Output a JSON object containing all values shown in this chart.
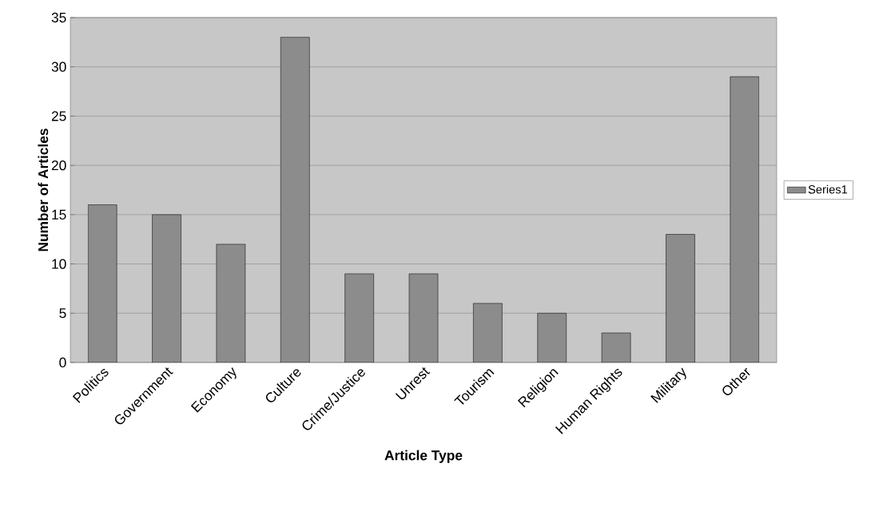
{
  "chart_data": {
    "type": "bar",
    "xlabel": "Article Type",
    "ylabel": "Number of Articles",
    "categories": [
      "Politics",
      "Government",
      "Economy",
      "Culture",
      "Crime/Justice",
      "Unrest",
      "Tourism",
      "Religion",
      "Human Rights",
      "Military",
      "Other"
    ],
    "series": [
      {
        "name": "Series1",
        "color": "#8c8c8c",
        "values": [
          16,
          15,
          12,
          33,
          9,
          9,
          6,
          5,
          3,
          13,
          29
        ]
      }
    ],
    "ylim": [
      0,
      35
    ],
    "yticks": [
      0,
      5,
      10,
      15,
      20,
      25,
      30,
      35
    ],
    "grid": "y",
    "legend": "right"
  }
}
